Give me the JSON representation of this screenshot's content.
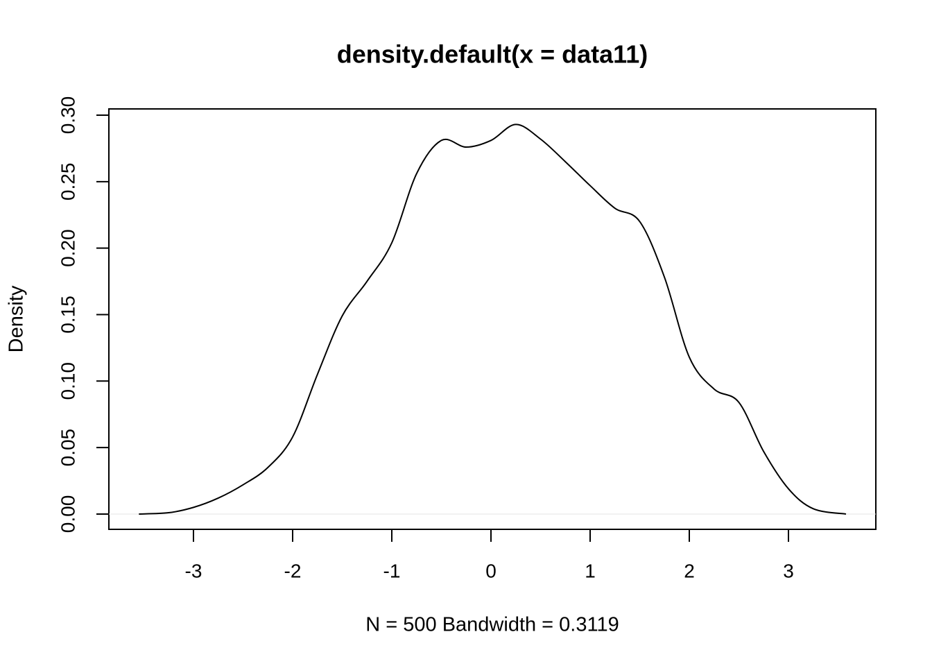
{
  "chart_data": {
    "type": "line",
    "title": "density.default(x = data11)",
    "xlabel": "N = 500   Bandwidth = 0.3119",
    "ylabel": "Density",
    "x": [
      -3.55,
      -3.25,
      -3.0,
      -2.75,
      -2.5,
      -2.25,
      -2.0,
      -1.75,
      -1.5,
      -1.25,
      -1.0,
      -0.75,
      -0.5,
      -0.25,
      0.0,
      0.25,
      0.5,
      0.75,
      1.0,
      1.25,
      1.5,
      1.75,
      2.0,
      2.25,
      2.5,
      2.75,
      3.0,
      3.25,
      3.58
    ],
    "series": [
      {
        "color": "#000000",
        "values": [
          0.0,
          0.001,
          0.005,
          0.012,
          0.022,
          0.035,
          0.058,
          0.105,
          0.149,
          0.175,
          0.204,
          0.256,
          0.281,
          0.276,
          0.281,
          0.293,
          0.282,
          0.265,
          0.247,
          0.23,
          0.22,
          0.178,
          0.118,
          0.094,
          0.084,
          0.047,
          0.019,
          0.004,
          0.0
        ]
      }
    ],
    "xlim": [
      -3.853,
      3.881
    ],
    "ylim": [
      -0.0115,
      0.3047
    ],
    "xticks": [
      -3,
      -2,
      -1,
      0,
      1,
      2,
      3
    ],
    "yticks": [
      {
        "value": 0,
        "label": "0.00"
      },
      {
        "value": 0.05,
        "label": "0.05"
      },
      {
        "value": 0.1,
        "label": "0.10"
      },
      {
        "value": 0.15,
        "label": "0.15"
      },
      {
        "value": 0.2,
        "label": "0.20"
      },
      {
        "value": 0.25,
        "label": "0.25"
      },
      {
        "value": 0.3,
        "label": "0.30"
      }
    ],
    "zero_line": true
  }
}
